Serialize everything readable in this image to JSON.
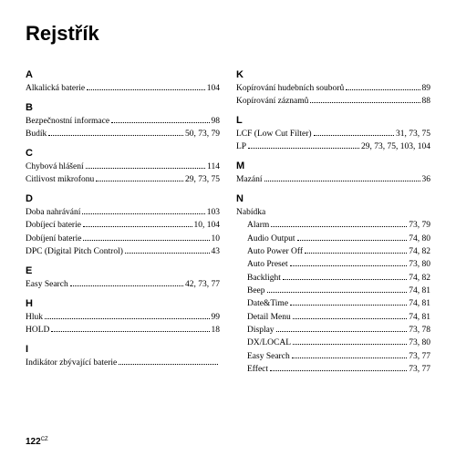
{
  "title": "Rejstřík",
  "page_number": "122",
  "page_suffix": "CZ",
  "left": [
    {
      "letter": "A",
      "items": [
        {
          "t": "Alkalická baterie",
          "p": "104"
        }
      ]
    },
    {
      "letter": "B",
      "items": [
        {
          "t": "Bezpečnostní informace",
          "p": "98"
        },
        {
          "t": "Budík",
          "p": "50, 73, 79"
        }
      ]
    },
    {
      "letter": "C",
      "items": [
        {
          "t": "Chybová hlášení",
          "p": "114"
        },
        {
          "t": "Citlivost mikrofonu",
          "p": "29, 73, 75"
        }
      ]
    },
    {
      "letter": "D",
      "items": [
        {
          "t": "Doba nahrávání",
          "p": "103"
        },
        {
          "t": "Dobíjecí baterie",
          "p": "10, 104"
        },
        {
          "t": "Dobíjení baterie",
          "p": "10"
        },
        {
          "t": "DPC (Digital Pitch Control)",
          "p": "43"
        }
      ]
    },
    {
      "letter": "E",
      "items": [
        {
          "t": "Easy Search",
          "p": "42, 73, 77"
        }
      ]
    },
    {
      "letter": "H",
      "items": [
        {
          "t": "Hluk",
          "p": "99"
        },
        {
          "t": "HOLD",
          "p": "18"
        }
      ]
    },
    {
      "letter": "I",
      "items": [
        {
          "t": "Indikátor zbývající baterie",
          "p": ""
        }
      ]
    }
  ],
  "right": [
    {
      "letter": "K",
      "items": [
        {
          "t": "Kopírování hudebních souborů",
          "p": "89"
        },
        {
          "t": "Kopírování záznamů",
          "p": "88"
        }
      ]
    },
    {
      "letter": "L",
      "items": [
        {
          "t": "LCF (Low Cut Filter)",
          "p": "31, 73, 75"
        },
        {
          "t": "LP",
          "p": "29, 73, 75, 103, 104"
        }
      ]
    },
    {
      "letter": "M",
      "items": [
        {
          "t": "Mazání",
          "p": "36"
        }
      ]
    },
    {
      "letter": "N",
      "items": [
        {
          "t": "Nabídka",
          "p": "",
          "nodots": true
        },
        {
          "t": "Alarm",
          "p": "73, 79",
          "sub": true
        },
        {
          "t": "Audio Output",
          "p": "74, 80",
          "sub": true
        },
        {
          "t": "Auto Power Off",
          "p": "74, 82",
          "sub": true
        },
        {
          "t": "Auto Preset",
          "p": "73, 80",
          "sub": true
        },
        {
          "t": "Backlight",
          "p": "74, 82",
          "sub": true
        },
        {
          "t": "Beep",
          "p": "74, 81",
          "sub": true
        },
        {
          "t": "Date&Time",
          "p": "74, 81",
          "sub": true
        },
        {
          "t": "Detail Menu",
          "p": "74, 81",
          "sub": true
        },
        {
          "t": "Display",
          "p": "73, 78",
          "sub": true
        },
        {
          "t": "DX/LOCAL",
          "p": "73, 80",
          "sub": true
        },
        {
          "t": "Easy Search",
          "p": "73, 77",
          "sub": true
        },
        {
          "t": "Effect",
          "p": "73, 77",
          "sub": true
        }
      ]
    }
  ]
}
